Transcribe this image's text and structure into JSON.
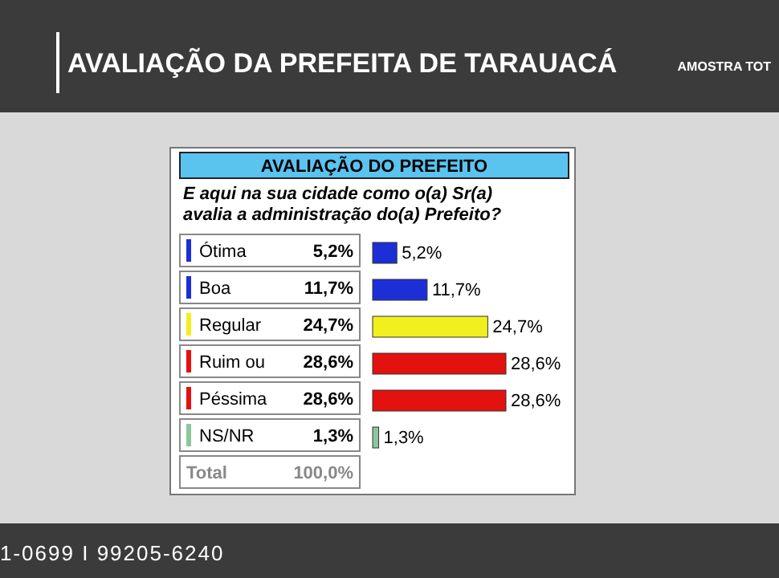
{
  "chart_data": {
    "type": "bar",
    "orientation": "horizontal",
    "title": "AVALIAÇÃO DA PREFEITA DE TARAUACÁ",
    "subtitle": "AVALIAÇÃO DO PREFEITO",
    "categories": [
      "Ótima",
      "Boa",
      "Regular",
      "Ruim ou",
      "Péssima",
      "NS/NR"
    ],
    "values": [
      5.2,
      11.7,
      24.7,
      28.6,
      28.6,
      1.3
    ],
    "colors": [
      "#1c2fd6",
      "#1c2fd6",
      "#f2ef1e",
      "#e3120f",
      "#e3120f",
      "#8cc79a"
    ],
    "value_labels": [
      "5,2%",
      "11,7%",
      "24,7%",
      "28,6%",
      "28,6%",
      "1,3%"
    ],
    "annotations": [
      "E aqui na sua cidade como o(a) Sr(a) avalia a administração do(a) Prefeito?",
      "Total",
      "100,0%",
      "AMOSTRA TOT",
      "1-0699 I 99205-6240"
    ]
  }
}
